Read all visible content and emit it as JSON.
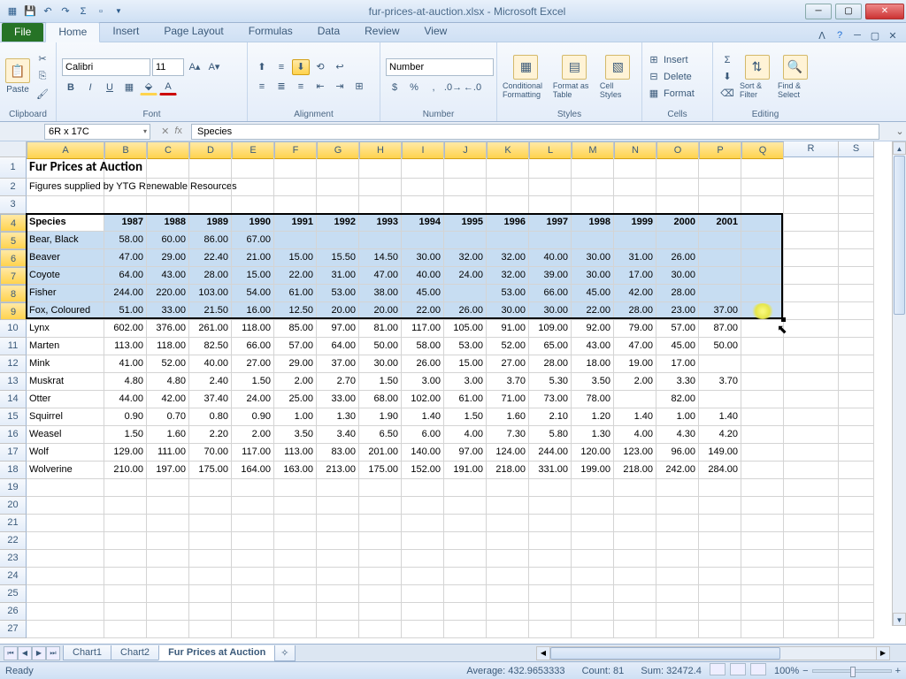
{
  "window": {
    "title": "fur-prices-at-auction.xlsx - Microsoft Excel"
  },
  "tabs": {
    "file": "File",
    "list": [
      "Home",
      "Insert",
      "Page Layout",
      "Formulas",
      "Data",
      "Review",
      "View"
    ],
    "active": 0
  },
  "ribbon": {
    "clipboard": {
      "paste": "Paste",
      "label": "Clipboard"
    },
    "font": {
      "name": "Calibri",
      "size": "11",
      "label": "Font"
    },
    "alignment": {
      "label": "Alignment"
    },
    "number": {
      "format": "Number",
      "label": "Number"
    },
    "styles": {
      "cond": "Conditional Formatting",
      "fmt": "Format as Table",
      "cell": "Cell Styles",
      "label": "Styles"
    },
    "cells": {
      "insert": "Insert",
      "delete": "Delete",
      "format": "Format",
      "label": "Cells"
    },
    "editing": {
      "sort": "Sort & Filter",
      "find": "Find & Select",
      "label": "Editing"
    }
  },
  "namebox": "6R x 17C",
  "formula": "Species",
  "cols": {
    "letters": [
      "A",
      "B",
      "C",
      "D",
      "E",
      "F",
      "G",
      "H",
      "I",
      "J",
      "K",
      "L",
      "M",
      "N",
      "O",
      "P",
      "Q",
      "R",
      "S"
    ],
    "widths": [
      88,
      48,
      48,
      48,
      48,
      48,
      48,
      48,
      48,
      48,
      48,
      48,
      48,
      48,
      48,
      48,
      48,
      62,
      40
    ]
  },
  "selection_col_count": 17,
  "rows_visible": 27,
  "tall_row": 1,
  "selection": {
    "r1": 4,
    "r2": 9,
    "c1": 1,
    "c2": 17
  },
  "cursor_highlight": {
    "row": 9,
    "col": 17
  },
  "cursor_arrow": {
    "row": 10,
    "col_after": 17
  },
  "title_text": "Fur Prices at Auction",
  "subtitle_text": "Figures supplied by YTG Renewable Resources",
  "headers": [
    "Species",
    "1987",
    "1988",
    "1989",
    "1990",
    "1991",
    "1992",
    "1993",
    "1994",
    "1995",
    "1996",
    "1997",
    "1998",
    "1999",
    "2000",
    "2001"
  ],
  "data": [
    [
      "Bear, Black",
      "58.00",
      "60.00",
      "86.00",
      "67.00",
      "",
      "",
      "",
      "",
      "",
      "",
      "",
      "",
      "",
      "",
      ""
    ],
    [
      "Beaver",
      "47.00",
      "29.00",
      "22.40",
      "21.00",
      "15.00",
      "15.50",
      "14.50",
      "30.00",
      "32.00",
      "32.00",
      "40.00",
      "30.00",
      "31.00",
      "26.00",
      ""
    ],
    [
      "Coyote",
      "64.00",
      "43.00",
      "28.00",
      "15.00",
      "22.00",
      "31.00",
      "47.00",
      "40.00",
      "24.00",
      "32.00",
      "39.00",
      "30.00",
      "17.00",
      "30.00",
      ""
    ],
    [
      "Fisher",
      "244.00",
      "220.00",
      "103.00",
      "54.00",
      "61.00",
      "53.00",
      "38.00",
      "45.00",
      "",
      "53.00",
      "66.00",
      "45.00",
      "42.00",
      "28.00",
      ""
    ],
    [
      "Fox, Coloured",
      "51.00",
      "33.00",
      "21.50",
      "16.00",
      "12.50",
      "20.00",
      "20.00",
      "22.00",
      "26.00",
      "30.00",
      "30.00",
      "22.00",
      "28.00",
      "23.00",
      "37.00"
    ],
    [
      "Lynx",
      "602.00",
      "376.00",
      "261.00",
      "118.00",
      "85.00",
      "97.00",
      "81.00",
      "117.00",
      "105.00",
      "91.00",
      "109.00",
      "92.00",
      "79.00",
      "57.00",
      "87.00"
    ],
    [
      "Marten",
      "113.00",
      "118.00",
      "82.50",
      "66.00",
      "57.00",
      "64.00",
      "50.00",
      "58.00",
      "53.00",
      "52.00",
      "65.00",
      "43.00",
      "47.00",
      "45.00",
      "50.00"
    ],
    [
      "Mink",
      "41.00",
      "52.00",
      "40.00",
      "27.00",
      "29.00",
      "37.00",
      "30.00",
      "26.00",
      "15.00",
      "27.00",
      "28.00",
      "18.00",
      "19.00",
      "17.00",
      ""
    ],
    [
      "Muskrat",
      "4.80",
      "4.80",
      "2.40",
      "1.50",
      "2.00",
      "2.70",
      "1.50",
      "3.00",
      "3.00",
      "3.70",
      "5.30",
      "3.50",
      "2.00",
      "3.30",
      "3.70"
    ],
    [
      "Otter",
      "44.00",
      "42.00",
      "37.40",
      "24.00",
      "25.00",
      "33.00",
      "68.00",
      "102.00",
      "61.00",
      "71.00",
      "73.00",
      "78.00",
      "",
      "82.00",
      ""
    ],
    [
      "Squirrel",
      "0.90",
      "0.70",
      "0.80",
      "0.90",
      "1.00",
      "1.30",
      "1.90",
      "1.40",
      "1.50",
      "1.60",
      "2.10",
      "1.20",
      "1.40",
      "1.00",
      "1.40"
    ],
    [
      "Weasel",
      "1.50",
      "1.60",
      "2.20",
      "2.00",
      "3.50",
      "3.40",
      "6.50",
      "6.00",
      "4.00",
      "7.30",
      "5.80",
      "1.30",
      "4.00",
      "4.30",
      "4.20"
    ],
    [
      "Wolf",
      "129.00",
      "111.00",
      "70.00",
      "117.00",
      "113.00",
      "83.00",
      "201.00",
      "140.00",
      "97.00",
      "124.00",
      "244.00",
      "120.00",
      "123.00",
      "96.00",
      "149.00"
    ],
    [
      "Wolverine",
      "210.00",
      "197.00",
      "175.00",
      "164.00",
      "163.00",
      "213.00",
      "175.00",
      "152.00",
      "191.00",
      "218.00",
      "331.00",
      "199.00",
      "218.00",
      "242.00",
      "284.00"
    ]
  ],
  "sheets": {
    "list": [
      "Chart1",
      "Chart2",
      "Fur Prices at Auction"
    ],
    "active": 2
  },
  "status": {
    "mode": "Ready",
    "avg": "Average: 432.9653333",
    "count": "Count: 81",
    "sum": "Sum: 32472.4",
    "zoom": "100%"
  }
}
